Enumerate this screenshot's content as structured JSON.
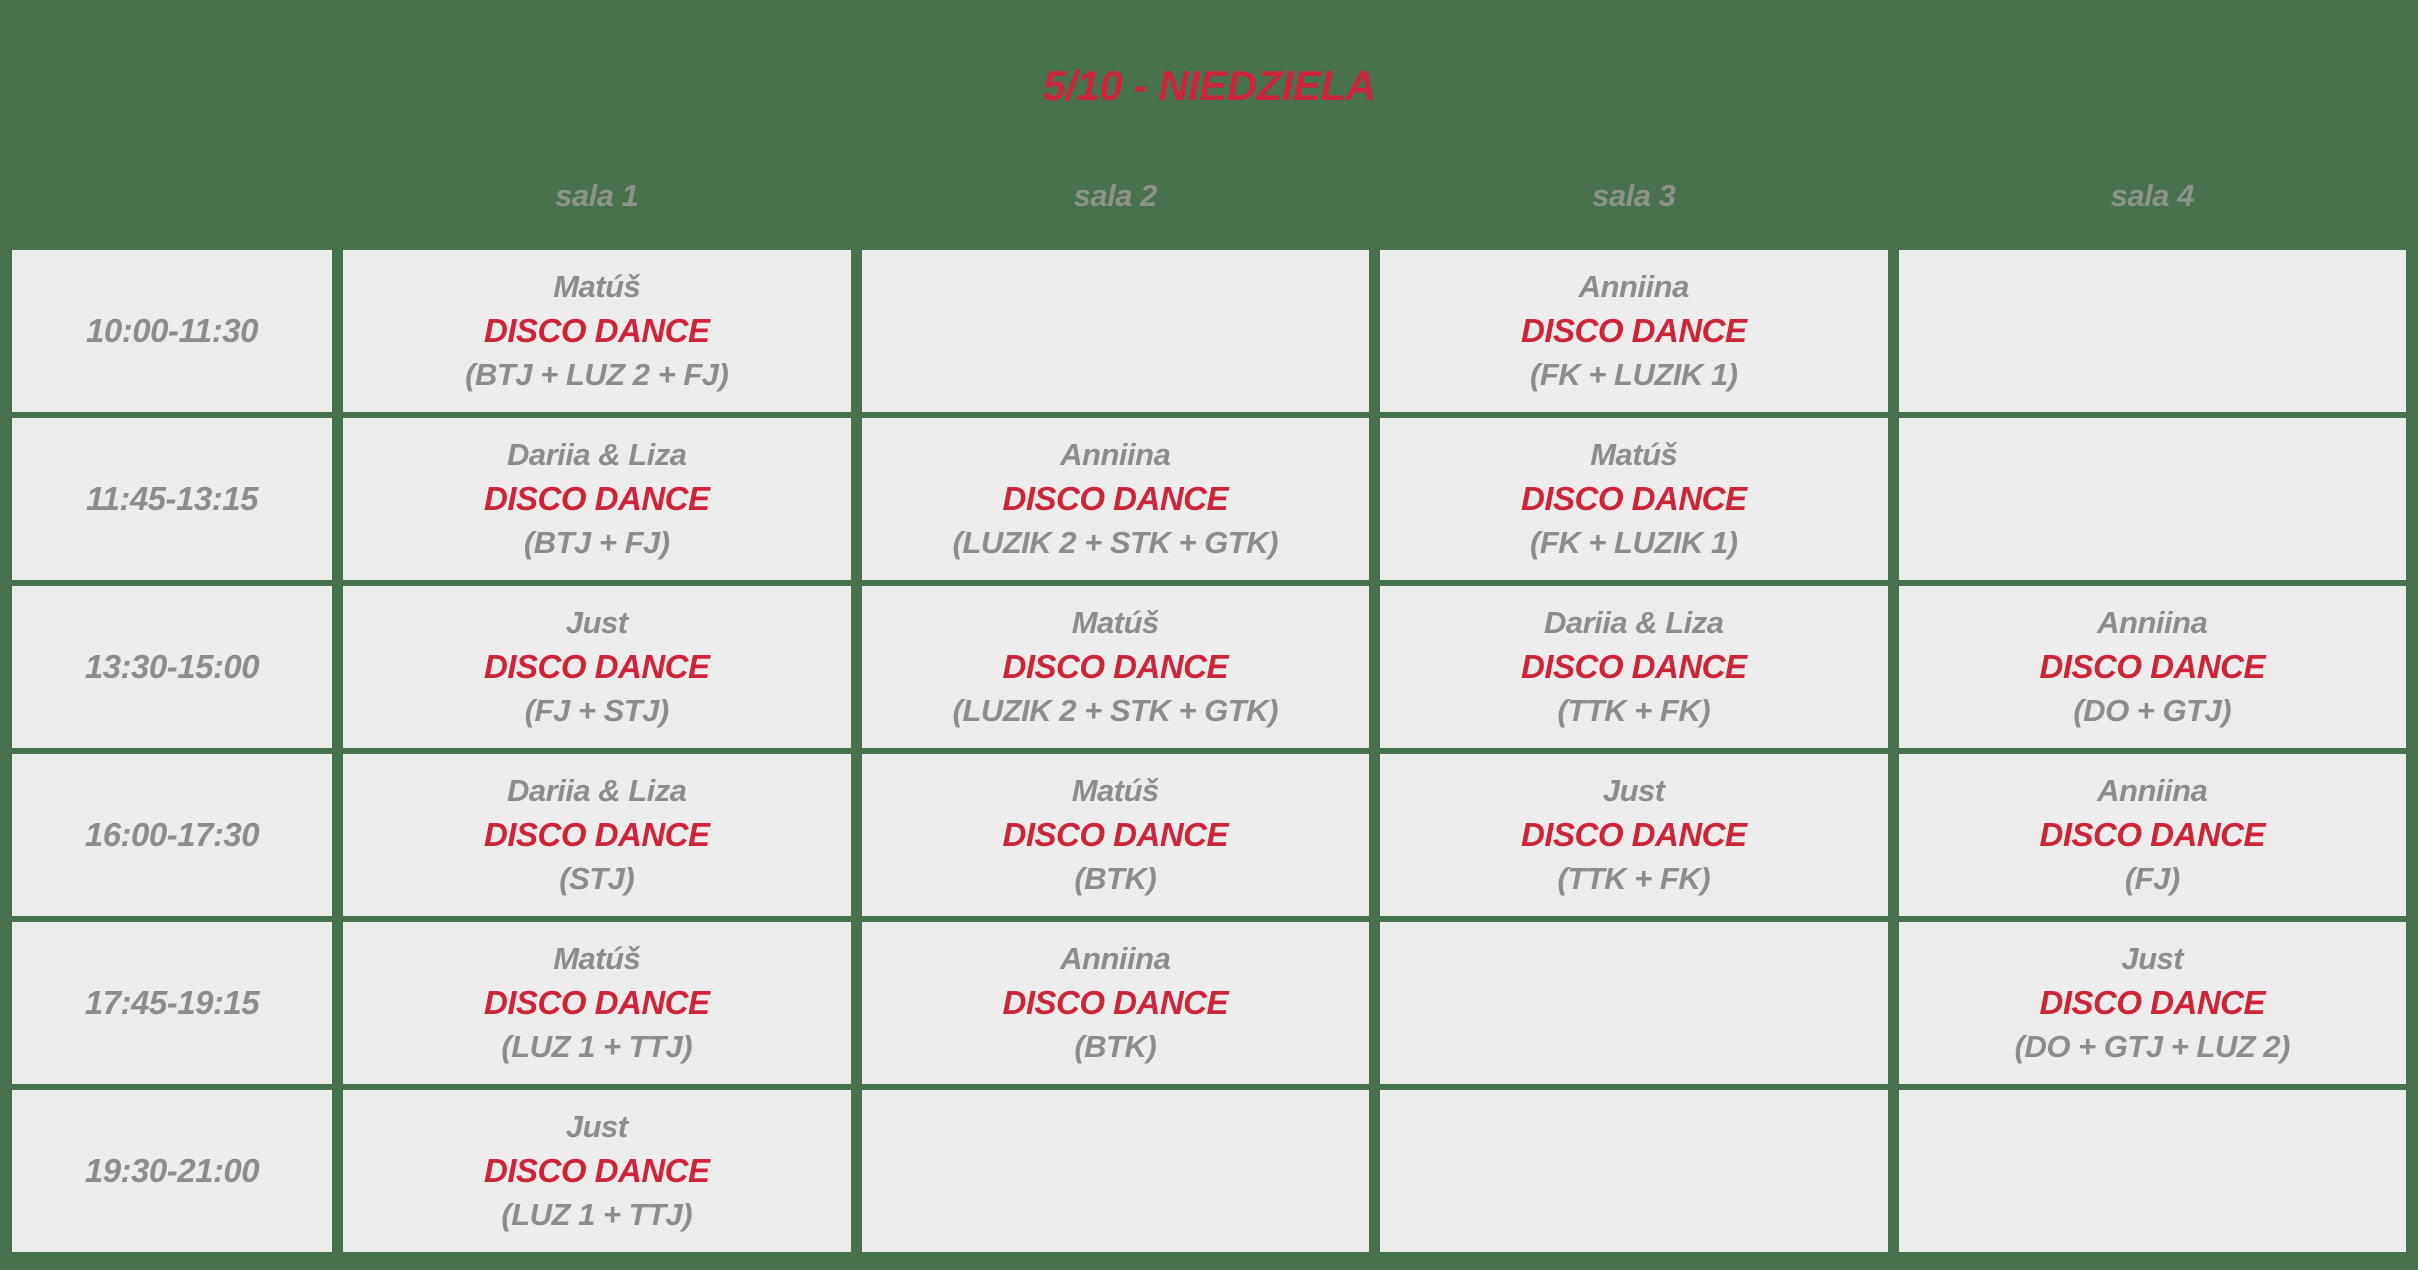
{
  "title": "5/10 - NIEDZIELA",
  "columns": [
    "sala 1",
    "sala 2",
    "sala 3",
    "sala 4"
  ],
  "rows": [
    {
      "time": "10:00-11:30",
      "cells": [
        {
          "instructor": "Matúš",
          "class_name": "DISCO DANCE",
          "groups": "(BTJ + LUZ 2 + FJ)"
        },
        null,
        {
          "instructor": "Anniina",
          "class_name": "DISCO DANCE",
          "groups": "(FK + LUZIK 1)"
        },
        null
      ]
    },
    {
      "time": "11:45-13:15",
      "cells": [
        {
          "instructor": "Dariia & Liza",
          "class_name": "DISCO DANCE",
          "groups": "(BTJ + FJ)"
        },
        {
          "instructor": "Anniina",
          "class_name": "DISCO DANCE",
          "groups": "(LUZIK 2 + STK + GTK)"
        },
        {
          "instructor": "Matúš",
          "class_name": "DISCO DANCE",
          "groups": "(FK + LUZIK 1)"
        },
        null
      ]
    },
    {
      "time": "13:30-15:00",
      "cells": [
        {
          "instructor": "Just",
          "class_name": "DISCO DANCE",
          "groups": "(FJ + STJ)"
        },
        {
          "instructor": "Matúš",
          "class_name": "DISCO DANCE",
          "groups": "(LUZIK 2 + STK + GTK)"
        },
        {
          "instructor": "Dariia & Liza",
          "class_name": "DISCO DANCE",
          "groups": "(TTK + FK)"
        },
        {
          "instructor": "Anniina",
          "class_name": "DISCO DANCE",
          "groups": "(DO + GTJ)"
        }
      ]
    },
    {
      "time": "16:00-17:30",
      "cells": [
        {
          "instructor": "Dariia & Liza",
          "class_name": "DISCO DANCE",
          "groups": "(STJ)"
        },
        {
          "instructor": "Matúš",
          "class_name": "DISCO DANCE",
          "groups": "(BTK)"
        },
        {
          "instructor": "Just",
          "class_name": "DISCO DANCE",
          "groups": "(TTK + FK)"
        },
        {
          "instructor": "Anniina",
          "class_name": "DISCO DANCE",
          "groups": "(FJ)"
        }
      ]
    },
    {
      "time": "17:45-19:15",
      "cells": [
        {
          "instructor": "Matúš",
          "class_name": "DISCO DANCE",
          "groups": "(LUZ 1 + TTJ)"
        },
        {
          "instructor": "Anniina",
          "class_name": "DISCO DANCE",
          "groups": "(BTK)"
        },
        null,
        {
          "instructor": "Just",
          "class_name": "DISCO DANCE",
          "groups": "(DO + GTJ + LUZ 2)"
        }
      ]
    },
    {
      "time": "19:30-21:00",
      "cells": [
        {
          "instructor": "Just",
          "class_name": "DISCO DANCE",
          "groups": "(LUZ 1 + TTJ)"
        },
        null,
        null,
        null
      ]
    }
  ],
  "colors": {
    "background_green": "#48724E",
    "cell_background": "#ECECEC",
    "accent_red": "#CC2439",
    "text_gray": "#8C8C8C",
    "header_gray": "#8E938D"
  }
}
